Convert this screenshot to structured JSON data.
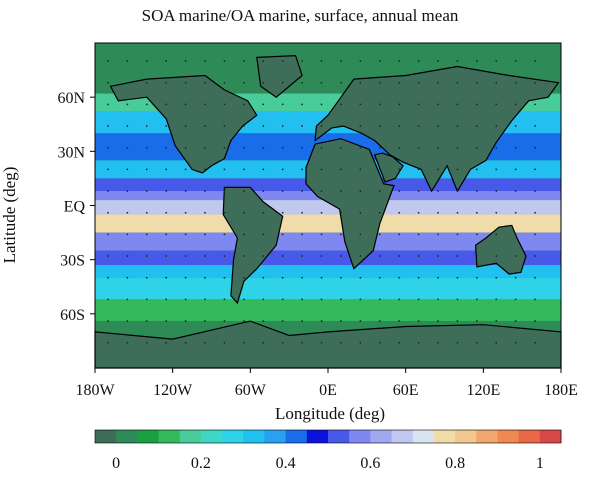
{
  "title": "SOA marine/OA marine, surface, annual mean",
  "xaxis": {
    "label": "Longitude (deg)",
    "ticks": [
      {
        "value": -180,
        "label": "180W"
      },
      {
        "value": -120,
        "label": "120W"
      },
      {
        "value": -60,
        "label": "60W"
      },
      {
        "value": 0,
        "label": "0E"
      },
      {
        "value": 60,
        "label": "60E"
      },
      {
        "value": 120,
        "label": "120E"
      },
      {
        "value": 180,
        "label": "180E"
      }
    ]
  },
  "yaxis": {
    "label": "Latitude (deg)",
    "ticks": [
      {
        "value": 60,
        "label": "60N"
      },
      {
        "value": 30,
        "label": "30N"
      },
      {
        "value": 0,
        "label": "EQ"
      },
      {
        "value": -30,
        "label": "30S"
      },
      {
        "value": -60,
        "label": "60S"
      }
    ]
  },
  "colorbar": {
    "colors": [
      "#3e6e5a",
      "#2e8b57",
      "#1aa040",
      "#33b85a",
      "#48cc99",
      "#3fd6c4",
      "#2ed3e8",
      "#22c0f0",
      "#2aa0f0",
      "#1a6de8",
      "#0a14d8",
      "#4858e8",
      "#7f88f0",
      "#a0a8f0",
      "#c0c8f0",
      "#d8e4f0",
      "#f0dca8",
      "#f0c890",
      "#f0a870",
      "#f08850",
      "#e86848",
      "#d84848"
    ],
    "ticks": [
      {
        "value": 0,
        "label": "0"
      },
      {
        "value": 0.2,
        "label": "0.2"
      },
      {
        "value": 0.4,
        "label": "0.4"
      },
      {
        "value": 0.6,
        "label": "0.6"
      },
      {
        "value": 0.8,
        "label": "0.8"
      },
      {
        "value": 1,
        "label": "1"
      }
    ],
    "range": [
      -0.05,
      1.05
    ]
  },
  "chart_data": {
    "type": "heatmap",
    "title": "SOA marine/OA marine, surface, annual mean",
    "xlabel": "Longitude (deg)",
    "ylabel": "Latitude (deg)",
    "xlim": [
      -180,
      180
    ],
    "ylim": [
      -90,
      90
    ],
    "bands": [
      {
        "lat": [
          62,
          90
        ],
        "value": 0.0
      },
      {
        "lat": [
          52,
          62
        ],
        "value": 0.15
      },
      {
        "lat": [
          40,
          52
        ],
        "value": 0.35
      },
      {
        "lat": [
          25,
          40
        ],
        "value": 0.4
      },
      {
        "lat": [
          15,
          25
        ],
        "value": 0.35
      },
      {
        "lat": [
          8,
          15
        ],
        "value": 0.5
      },
      {
        "lat": [
          3,
          8
        ],
        "value": 0.6
      },
      {
        "lat": [
          -5,
          3
        ],
        "value": 0.7
      },
      {
        "lat": [
          -15,
          -5
        ],
        "value": 0.75
      },
      {
        "lat": [
          -25,
          -15
        ],
        "value": 0.6
      },
      {
        "lat": [
          -33,
          -25
        ],
        "value": 0.5
      },
      {
        "lat": [
          -40,
          -33
        ],
        "value": 0.35
      },
      {
        "lat": [
          -52,
          -40
        ],
        "value": 0.25
      },
      {
        "lat": [
          -64,
          -52
        ],
        "value": 0.1
      },
      {
        "lat": [
          -90,
          -64
        ],
        "value": 0.0
      }
    ]
  }
}
